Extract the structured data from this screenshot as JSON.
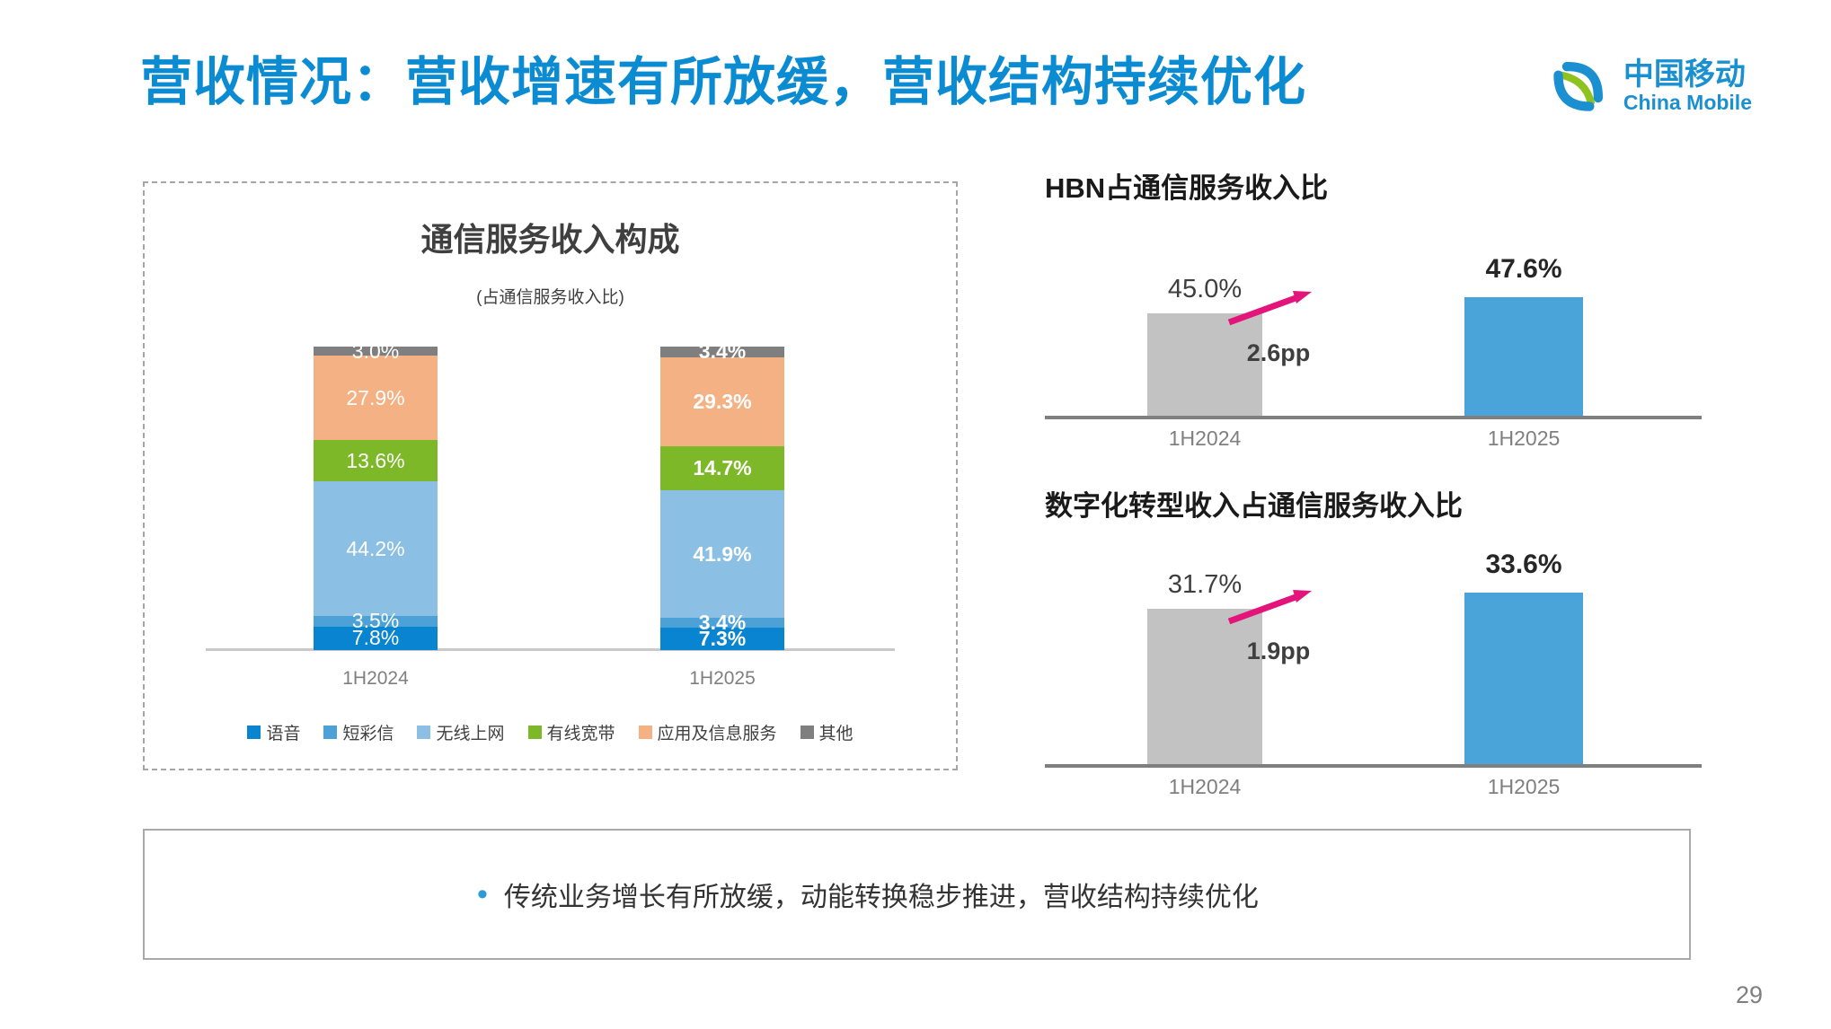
{
  "slide": {
    "title": "营收情况：营收增速有所放缓，营收结构持续优化",
    "footer_note": "传统业务增长有所放缓，动能转换稳步推进，营收结构持续优化",
    "page_number": "29"
  },
  "logo": {
    "cn": "中国移动",
    "en": "China Mobile",
    "icon": "china-mobile-swirl-icon",
    "brand_blue": "#1b90d0",
    "brand_green": "#8dc21f"
  },
  "colors": {
    "title_blue": "#0b8bd1",
    "arrow_pink": "#e3147a",
    "axis_gray": "#7f7f7f",
    "mini_bar_gray": "#c2c2c2",
    "mini_bar_blue": "#4aa4d9"
  },
  "chart_data": [
    {
      "type": "bar",
      "stacked": true,
      "title": "通信服务收入构成",
      "subtitle": "(占通信服务收入比)",
      "categories": [
        "1H2024",
        "1H2025"
      ],
      "unit": "%",
      "ylim": [
        0,
        100
      ],
      "grid": false,
      "legend_position": "bottom",
      "series": [
        {
          "name": "语音",
          "color": "#0884d0",
          "values": [
            7.8,
            7.3
          ]
        },
        {
          "name": "短彩信",
          "color": "#4ca2d7",
          "values": [
            3.5,
            3.4
          ]
        },
        {
          "name": "无线上网",
          "color": "#8bc0e4",
          "values": [
            44.2,
            41.9
          ]
        },
        {
          "name": "有线宽带",
          "color": "#7cb828",
          "values": [
            13.6,
            14.7
          ]
        },
        {
          "name": "应用及信息服务",
          "color": "#f4b183",
          "values": [
            27.9,
            29.3
          ]
        },
        {
          "name": "其他",
          "color": "#7f7f7f",
          "values": [
            3.0,
            3.4
          ]
        }
      ]
    },
    {
      "type": "bar",
      "title": "HBN占通信服务收入比",
      "categories": [
        "1H2024",
        "1H2025"
      ],
      "values": [
        45.0,
        47.6
      ],
      "labels": [
        "45.0%",
        "47.6%"
      ],
      "delta": "2.6pp",
      "bar_colors": [
        "#c2c2c2",
        "#4aa4d9"
      ],
      "grid": false
    },
    {
      "type": "bar",
      "title": "数字化转型收入占通信服务收入比",
      "categories": [
        "1H2024",
        "1H2025"
      ],
      "values": [
        31.7,
        33.6
      ],
      "labels": [
        "31.7%",
        "33.6%"
      ],
      "delta": "1.9pp",
      "bar_colors": [
        "#c2c2c2",
        "#4aa4d9"
      ],
      "grid": false
    }
  ]
}
